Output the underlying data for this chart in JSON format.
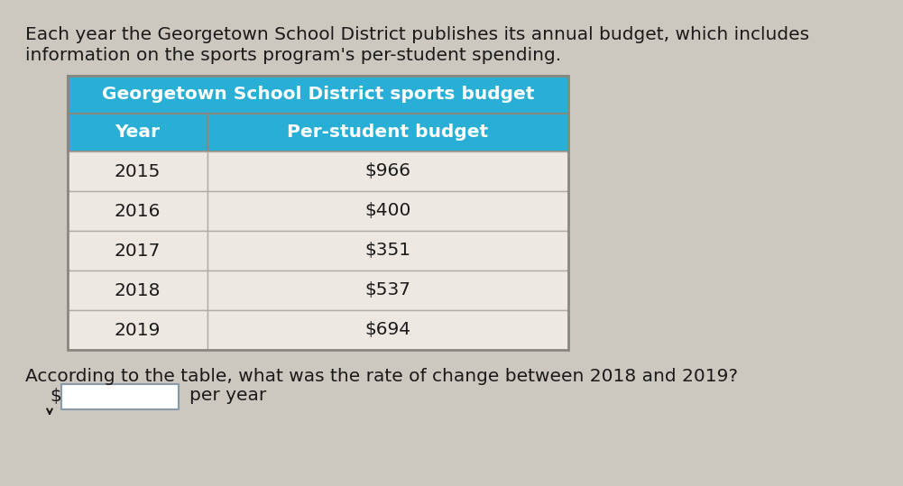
{
  "bg_color": "#cdc8bf",
  "page_bg": "#f0ede8",
  "intro_text_line1": "Each year the Georgetown School District publishes its annual budget, which includes",
  "intro_text_line2": "information on the sports program's per-student spending.",
  "table_title": "Georgetown School District sports budget",
  "table_title_bg": "#29afd6",
  "table_title_color": "#ffffff",
  "col_header_bg": "#29afd6",
  "col_header_color": "#ffffff",
  "col1_header": "Year",
  "col2_header": "Per-student budget",
  "row_bg": "#ede9e2",
  "row_border_color": "#b0aba3",
  "table_border_color": "#888880",
  "years": [
    "2015",
    "2016",
    "2017",
    "2018",
    "2019"
  ],
  "budgets": [
    "$966",
    "$400",
    "$351",
    "$537",
    "$694"
  ],
  "question_text": "According to the table, what was the rate of change between 2018 and 2019?",
  "answer_prefix": "$",
  "answer_suffix": "per year",
  "text_color": "#1a1a1a",
  "input_box_border": "#8899aa",
  "input_box_bg": "#ffffff",
  "font_size_intro": 14.5,
  "font_size_title": 14.5,
  "font_size_header": 14.5,
  "font_size_data": 14.5,
  "font_size_question": 14.5,
  "font_size_answer": 14.5
}
